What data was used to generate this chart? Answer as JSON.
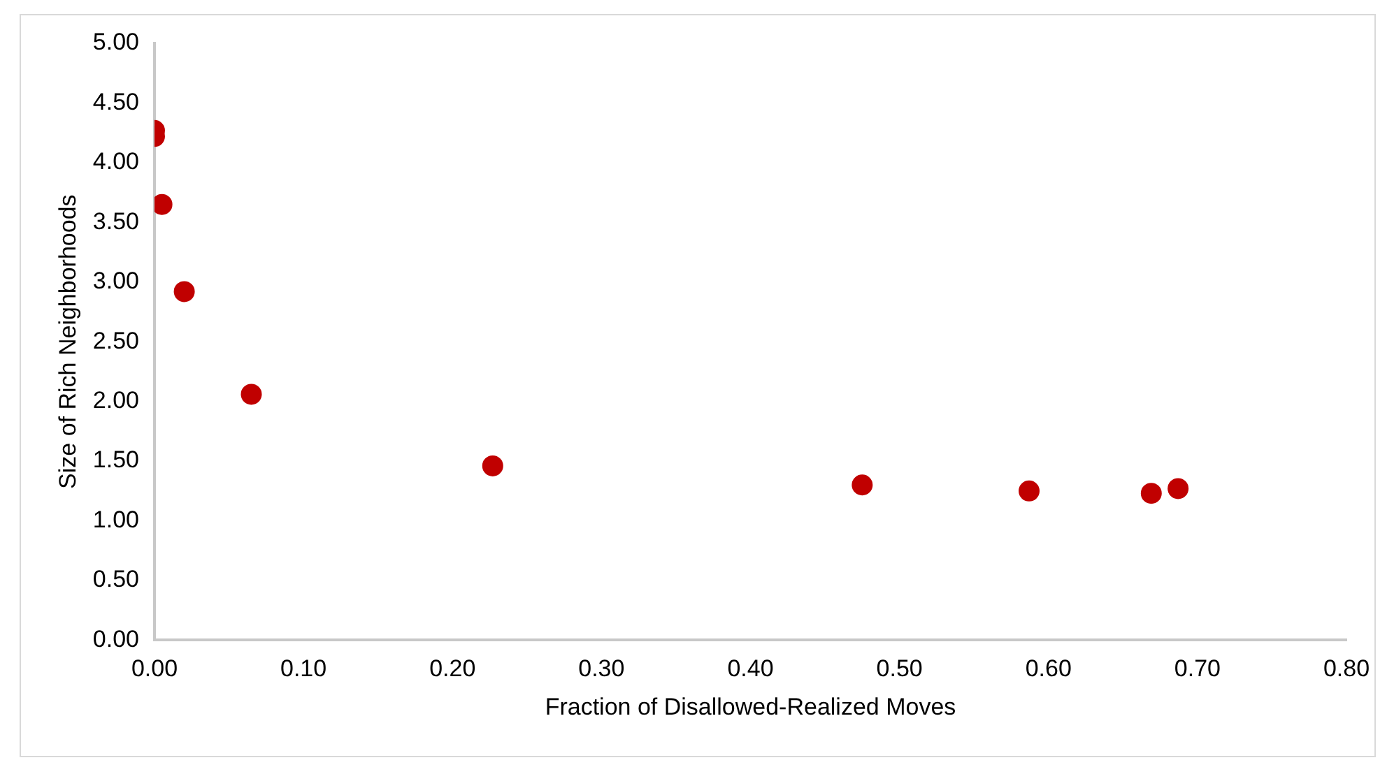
{
  "chart_data": {
    "type": "scatter",
    "xlabel": "Fraction of Disallowed-Realized Moves",
    "ylabel": "Size of Rich Neighborhoods",
    "x": [
      0.0,
      0.0,
      0.005,
      0.02,
      0.065,
      0.227,
      0.475,
      0.587,
      0.669,
      0.687
    ],
    "values": [
      4.27,
      4.22,
      3.65,
      2.92,
      2.06,
      1.46,
      1.3,
      1.25,
      1.23,
      1.27
    ],
    "color": "#c00000",
    "marker": "circle",
    "grid": false,
    "legend": false,
    "xlim": [
      0,
      0.8
    ],
    "xticks": [
      {
        "value": 0,
        "label": "0.00"
      },
      {
        "value": 0.1,
        "label": "0.10"
      },
      {
        "value": 0.2,
        "label": "0.20"
      },
      {
        "value": 0.3,
        "label": "0.30"
      },
      {
        "value": 0.4,
        "label": "0.40"
      },
      {
        "value": 0.5,
        "label": "0.50"
      },
      {
        "value": 0.6,
        "label": "0.60"
      },
      {
        "value": 0.7,
        "label": "0.70"
      },
      {
        "value": 0.8,
        "label": "0.80"
      }
    ],
    "ylim": [
      0,
      5
    ],
    "yticks": [
      {
        "value": 0,
        "label": "0.00"
      },
      {
        "value": 0.5,
        "label": "0.50"
      },
      {
        "value": 1,
        "label": "1.00"
      },
      {
        "value": 1.5,
        "label": "1.50"
      },
      {
        "value": 2,
        "label": "2.00"
      },
      {
        "value": 2.5,
        "label": "2.50"
      },
      {
        "value": 3,
        "label": "3.00"
      },
      {
        "value": 3.5,
        "label": "3.50"
      },
      {
        "value": 4,
        "label": "4.00"
      },
      {
        "value": 4.5,
        "label": "4.50"
      },
      {
        "value": 5,
        "label": "5.00"
      }
    ]
  }
}
